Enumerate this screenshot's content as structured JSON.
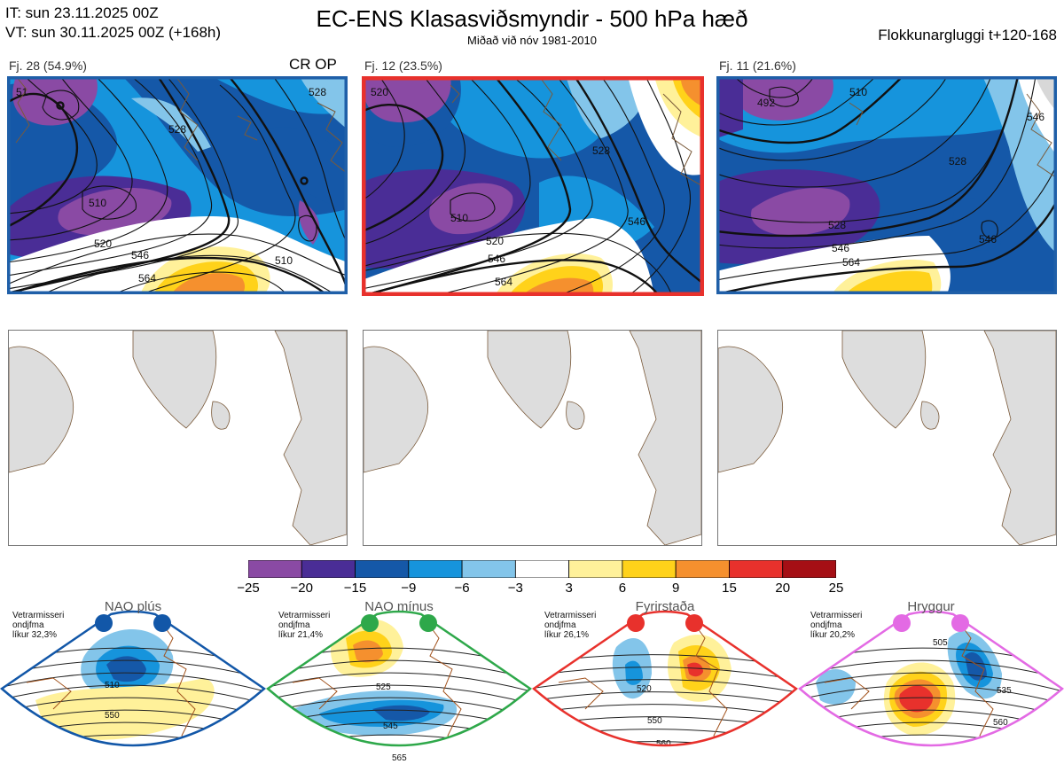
{
  "header": {
    "it_line": "IT: sun 23.11.2025 00Z",
    "vt_line": "VT: sun 30.11.2025 00Z  (+168h)",
    "title": "EC-ENS Klasasviðsmyndir - 500 hPa hæð",
    "subtitle": "Miðað við nóv 1981-2010",
    "window": "Flokkunargluggi t+120-168"
  },
  "chart_data": [
    {
      "type": "heatmap",
      "label": "Fj. 28 (54.9%)",
      "extra_label": "CR OP",
      "border_color": "#1f5fa8",
      "contour_labels": [
        "510",
        "520",
        "528",
        "546",
        "564",
        "528",
        "510",
        "51"
      ]
    },
    {
      "type": "heatmap",
      "label": "Fj. 12 (23.5%)",
      "border_color": "#e8312c",
      "contour_labels": [
        "510",
        "520",
        "528",
        "546",
        "564",
        "546",
        "520"
      ]
    },
    {
      "type": "heatmap",
      "label": "Fj. 11 (21.6%)",
      "border_color": "#1f5fa8",
      "contour_labels": [
        "492",
        "510",
        "528",
        "546",
        "564",
        "528",
        "546",
        "546"
      ]
    }
  ],
  "colorbar": {
    "ticks": [
      "−25",
      "−20",
      "−15",
      "−9",
      "−6",
      "−3",
      "3",
      "6",
      "9",
      "15",
      "20",
      "25"
    ],
    "colors": [
      "#8a4aa4",
      "#4a2d96",
      "#1558a8",
      "#1694dc",
      "#83c5ea",
      "#ffffff",
      "#fff19a",
      "#ffd21a",
      "#f5902e",
      "#e8312c",
      "#a50f15"
    ]
  },
  "regimes": [
    {
      "name": "NAO plús",
      "line1": "Vetrarmisseri",
      "line2": "ondjfma",
      "line3": "líkur 32,3%",
      "color": "#1257a8",
      "contours": [
        "510",
        "550"
      ]
    },
    {
      "name": "NAO mínus",
      "line1": "Vetrarmisseri",
      "line2": "ondjfma",
      "line3": "líkur 21,4%",
      "color": "#2ea84a",
      "contours": [
        "525",
        "545",
        "565"
      ]
    },
    {
      "name": "Fyrirstaða",
      "line1": "Vetrarmisseri",
      "line2": "ondjfma",
      "line3": "líkur 26,1%",
      "color": "#e8312c",
      "contours": [
        "520",
        "550",
        "560"
      ]
    },
    {
      "name": "Hryggur",
      "line1": "Vetrarmisseri",
      "line2": "ondjfma",
      "line3": "líkur 20,2%",
      "color": "#e36ae4",
      "contours": [
        "505",
        "535",
        "560"
      ]
    }
  ]
}
